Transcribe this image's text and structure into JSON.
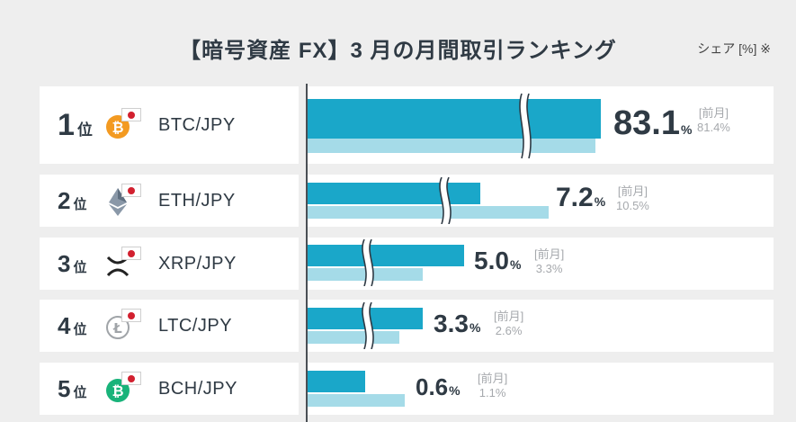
{
  "header": {
    "title": "【暗号資産 FX】3 月の月間取引ランキング",
    "unit_note": "シェア [%] ※"
  },
  "prev_label": "[前月]",
  "pct_unit": "%",
  "colors": {
    "current_bar": "#1aa7c9",
    "previous_bar": "#a5dbe8",
    "jp_flag_red": "#d2202f"
  },
  "rows": [
    {
      "rank": "1",
      "rank_suffix": "位",
      "coin_icon": "bitcoin-icon",
      "pair": "BTC/JPY",
      "value": "83.1",
      "prev": "81.4%"
    },
    {
      "rank": "2",
      "rank_suffix": "位",
      "coin_icon": "ethereum-icon",
      "pair": "ETH/JPY",
      "value": "7.2",
      "prev": "10.5%"
    },
    {
      "rank": "3",
      "rank_suffix": "位",
      "coin_icon": "xrp-icon",
      "pair": "XRP/JPY",
      "value": "5.0",
      "prev": "3.3%"
    },
    {
      "rank": "4",
      "rank_suffix": "位",
      "coin_icon": "litecoin-icon",
      "pair": "LTC/JPY",
      "value": "3.3",
      "prev": "2.6%"
    },
    {
      "rank": "5",
      "rank_suffix": "位",
      "coin_icon": "bitcoin-cash-icon",
      "pair": "BCH/JPY",
      "value": "0.6",
      "prev": "1.1%"
    }
  ],
  "chart_data": {
    "type": "bar",
    "orientation": "horizontal",
    "axis_break": true,
    "categories": [
      "BTC/JPY",
      "ETH/JPY",
      "XRP/JPY",
      "LTC/JPY",
      "BCH/JPY"
    ],
    "series": [
      {
        "name": "",
        "values": [
          83.1,
          7.2,
          5.0,
          3.3,
          0.6
        ]
      },
      {
        "name": "[前月]",
        "values": [
          81.4,
          10.5,
          3.3,
          2.6,
          1.1
        ]
      }
    ],
    "title": "【暗号資産 FX】3 月の月間取引ランキング",
    "ylabel": "シェア [%] ※"
  }
}
